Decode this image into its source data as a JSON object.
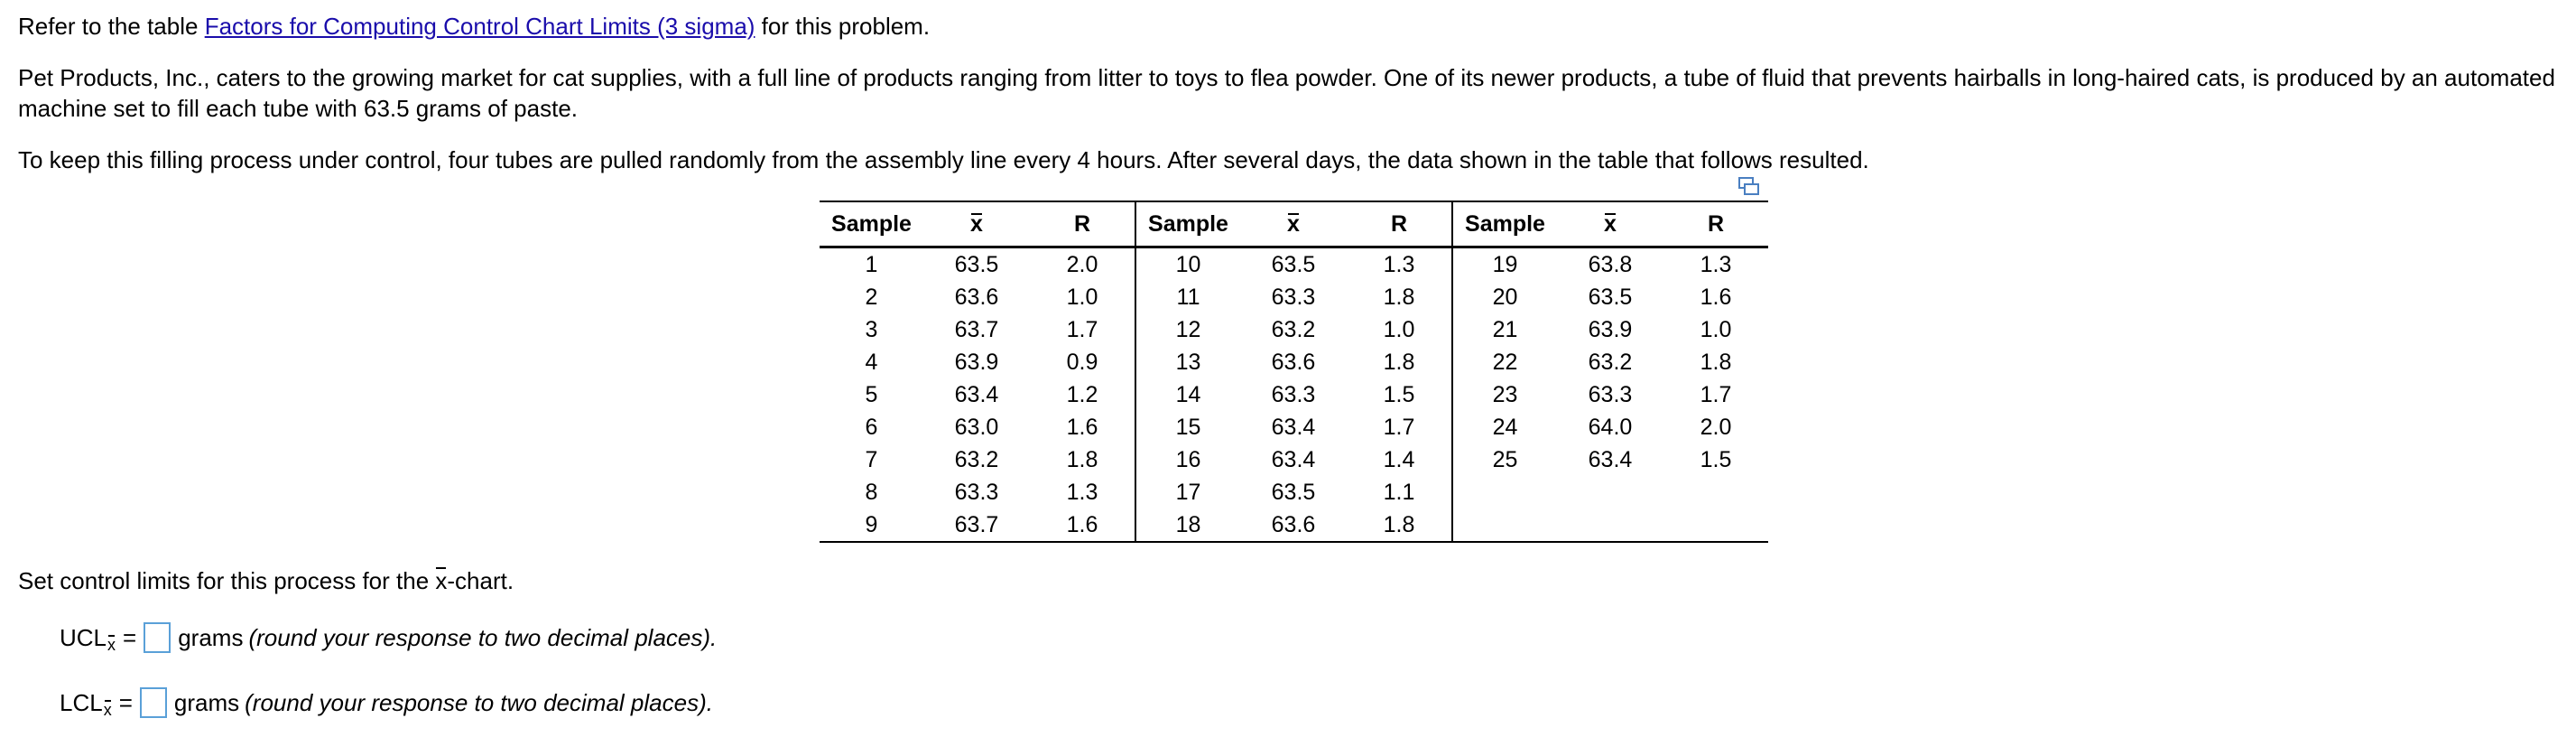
{
  "intro": {
    "prefix": "Refer to the table ",
    "link_text": "Factors for Computing Control Chart Limits (3 sigma)",
    "suffix": " for this problem."
  },
  "paragraph1": "Pet Products, Inc., caters to the growing market for cat supplies, with a full line of products ranging from litter to toys to flea powder. One of its newer products, a tube of fluid that prevents hairballs in long-haired cats, is produced by an automated machine set to fill each tube with 63.5 grams of paste.",
  "paragraph2": "To keep this filling process under control, four tubes are pulled randomly from the assembly line every 4 hours. After several days, the data shown in the table that follows resulted.",
  "table": {
    "headers": [
      "Sample",
      "x",
      "R",
      "Sample",
      "x",
      "R",
      "Sample",
      "x",
      "R"
    ],
    "rows": [
      [
        "1",
        "63.5",
        "2.0",
        "10",
        "63.5",
        "1.3",
        "19",
        "63.8",
        "1.3"
      ],
      [
        "2",
        "63.6",
        "1.0",
        "11",
        "63.3",
        "1.8",
        "20",
        "63.5",
        "1.6"
      ],
      [
        "3",
        "63.7",
        "1.7",
        "12",
        "63.2",
        "1.0",
        "21",
        "63.9",
        "1.0"
      ],
      [
        "4",
        "63.9",
        "0.9",
        "13",
        "63.6",
        "1.8",
        "22",
        "63.2",
        "1.8"
      ],
      [
        "5",
        "63.4",
        "1.2",
        "14",
        "63.3",
        "1.5",
        "23",
        "63.3",
        "1.7"
      ],
      [
        "6",
        "63.0",
        "1.6",
        "15",
        "63.4",
        "1.7",
        "24",
        "64.0",
        "2.0"
      ],
      [
        "7",
        "63.2",
        "1.8",
        "16",
        "63.4",
        "1.4",
        "25",
        "63.4",
        "1.5"
      ],
      [
        "8",
        "63.3",
        "1.3",
        "17",
        "63.5",
        "1.1",
        "",
        "",
        " "
      ],
      [
        "9",
        "63.7",
        "1.6",
        "18",
        "63.6",
        "1.8",
        "",
        "",
        ""
      ]
    ]
  },
  "question": {
    "prefix": "Set control limits for this process for the ",
    "x": "x",
    "suffix": "-chart."
  },
  "ucl": {
    "label": "UCL",
    "sub": "x",
    "equals": "=",
    "unit": "grams",
    "hint": "(round your response to two decimal places).",
    "value": ""
  },
  "lcl": {
    "label": "LCL",
    "sub": "x",
    "equals": "=",
    "unit": "grams",
    "hint": "(round your response to two decimal places).",
    "value": ""
  },
  "colors": {
    "link": "#1a0dab",
    "input_border": "#5aa0d8",
    "icon": "#4a7fc1"
  },
  "icons": {
    "copy": "copy-table-icon"
  }
}
